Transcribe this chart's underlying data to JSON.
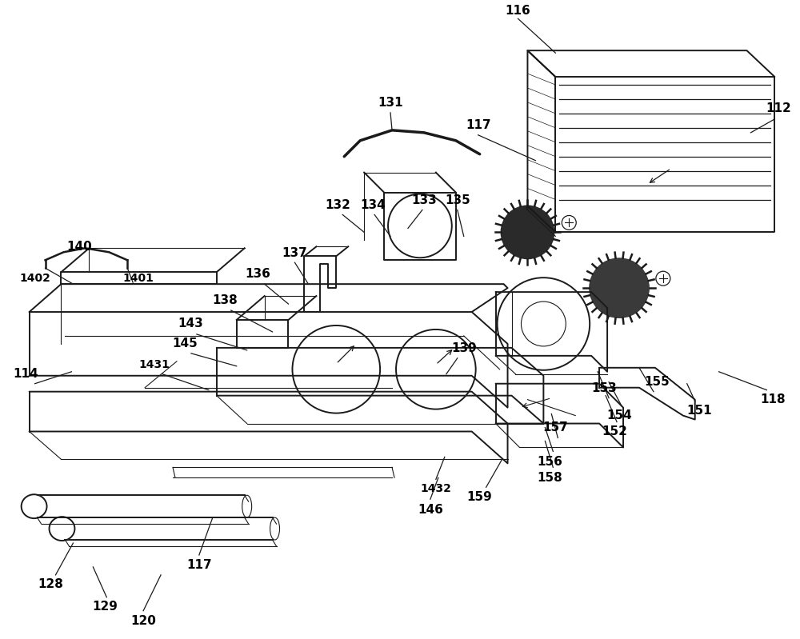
{
  "background_color": "#ffffff",
  "line_color": "#1a1a1a",
  "lw_main": 1.4,
  "lw_thin": 0.8,
  "lw_label": 0.9,
  "figsize": [
    10.0,
    7.99
  ],
  "dpi": 100
}
